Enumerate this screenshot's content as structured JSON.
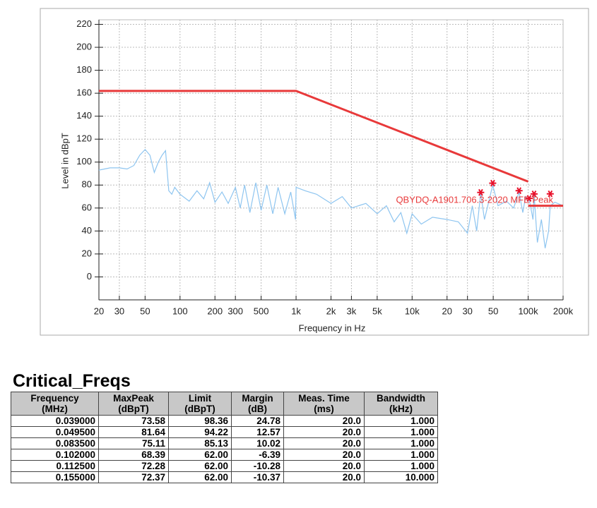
{
  "chart_data": {
    "type": "line",
    "x_label": "Frequency in Hz",
    "y_label": "Level in dBpT",
    "log_x": true,
    "grid": true,
    "xlim": [
      20,
      200000
    ],
    "ylim": [
      -20,
      224
    ],
    "yticks": [
      0,
      20,
      40,
      60,
      80,
      100,
      120,
      140,
      160,
      180,
      200,
      220
    ],
    "xticks": [
      20,
      30,
      50,
      100,
      200,
      300,
      500,
      {
        "value": 1000,
        "label": "1k"
      },
      {
        "value": 2000,
        "label": "2k"
      },
      {
        "value": 3000,
        "label": "3k"
      },
      {
        "value": 5000,
        "label": "5k"
      },
      {
        "value": 10000,
        "label": "10k"
      },
      {
        "value": 20000,
        "label": "20"
      },
      {
        "value": 30000,
        "label": "30"
      },
      {
        "value": 50000,
        "label": "50"
      },
      {
        "value": 100000,
        "label": "100k"
      },
      {
        "value": 200000,
        "label": "200k"
      }
    ],
    "annotation": "QBYDQ-A1901.706.3-2020 MFE Peak",
    "series": [
      {
        "kind": "trace",
        "color": "#8ec5f0",
        "x": [
          20,
          25,
          30,
          35,
          40,
          45,
          50,
          55,
          60,
          65,
          70,
          75,
          80,
          85,
          90,
          100,
          120,
          140,
          160,
          180,
          200,
          230,
          260,
          300,
          330,
          360,
          400,
          450,
          500,
          560,
          630,
          700,
          800,
          900,
          990,
          1000,
          1200,
          1500,
          2000,
          2500,
          3000,
          4000,
          5000,
          6000,
          7000,
          8000,
          9000,
          10000,
          12000,
          15000,
          20000,
          25000,
          30000,
          33000,
          36000,
          39000,
          42000,
          49500,
          55000,
          65000,
          75000,
          83500,
          90000,
          95000,
          100000,
          102000,
          110000,
          112500,
          120000,
          130000,
          140000,
          150000,
          155000,
          170000,
          200000
        ],
        "values": [
          93,
          95,
          95,
          94,
          97,
          106,
          111,
          106,
          91,
          100,
          106,
          110,
          75,
          72,
          78,
          72,
          66,
          75,
          68,
          82,
          65,
          74,
          64,
          78,
          60,
          80,
          56,
          82,
          58,
          80,
          55,
          78,
          55,
          74,
          50,
          78,
          75,
          72,
          64,
          70,
          60,
          64,
          55,
          62,
          48,
          56,
          38,
          55,
          46,
          52,
          50,
          48,
          38,
          62,
          40,
          73,
          50,
          80,
          62,
          66,
          60,
          74,
          56,
          70,
          66,
          68,
          50,
          72,
          30,
          50,
          25,
          40,
          62,
          65,
          62
        ]
      },
      {
        "kind": "limit",
        "color": "#e8393a",
        "x": [
          20,
          1000,
          100000,
          100000,
          100000,
          200000
        ],
        "values": [
          162,
          162,
          83,
          null,
          62,
          62
        ]
      },
      {
        "kind": "peaks",
        "color": "#e8102a",
        "x": [
          39000,
          49500,
          83500,
          102000,
          112500,
          155000
        ],
        "values": [
          73.58,
          81.64,
          75.11,
          68.39,
          72.28,
          72.37
        ]
      }
    ]
  },
  "table": {
    "title": "Critical_Freqs",
    "columns": [
      {
        "name": "Frequency",
        "unit": "(MHz)"
      },
      {
        "name": "MaxPeak",
        "unit": "(dBpT)"
      },
      {
        "name": "Limit",
        "unit": "(dBpT)"
      },
      {
        "name": "Margin",
        "unit": "(dB)"
      },
      {
        "name": "Meas. Time",
        "unit": "(ms)"
      },
      {
        "name": "Bandwidth",
        "unit": "(kHz)"
      }
    ],
    "rows": [
      [
        "0.039000",
        "73.58",
        "98.36",
        "24.78",
        "20.0",
        "1.000"
      ],
      [
        "0.049500",
        "81.64",
        "94.22",
        "12.57",
        "20.0",
        "1.000"
      ],
      [
        "0.083500",
        "75.11",
        "85.13",
        "10.02",
        "20.0",
        "1.000"
      ],
      [
        "0.102000",
        "68.39",
        "62.00",
        "-6.39",
        "20.0",
        "1.000"
      ],
      [
        "0.112500",
        "72.28",
        "62.00",
        "-10.28",
        "20.0",
        "1.000"
      ],
      [
        "0.155000",
        "72.37",
        "62.00",
        "-10.37",
        "20.0",
        "10.000"
      ]
    ]
  }
}
